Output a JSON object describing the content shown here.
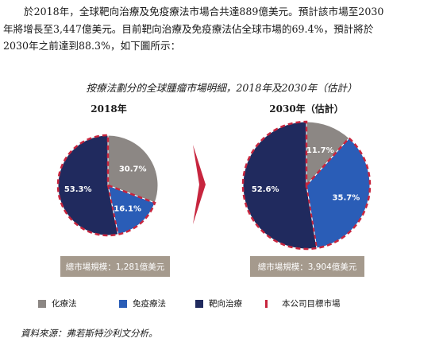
{
  "intro": {
    "line1": "於2018年，全球靶向治療及免疫療法市場合共達889億美元。預計該市場至2030",
    "line2": "年將增長至3,447億美元。目前靶向治療及免疫療法佔全球市場的69.4%，預計將於",
    "line3": "2030年之前達到88.3%，如下圖所示："
  },
  "chart_data": {
    "type": "pie",
    "title": "按療法劃分的全球腫瘤市場明細，2018年及2030年（估計）",
    "charts": [
      {
        "title": "2018年",
        "total_label": "總市場規模：1,281億美元",
        "slices": [
          {
            "category": "化療法",
            "value": 30.7,
            "label": "30.7%"
          },
          {
            "category": "免疫療法",
            "value": 16.1,
            "label": "16.1%"
          },
          {
            "category": "靶向治療",
            "value": 53.3,
            "label": "53.3%"
          }
        ]
      },
      {
        "title": "2030年（估計）",
        "total_label": "總市場規模：3,904億美元",
        "slices": [
          {
            "category": "化療法",
            "value": 11.7,
            "label": "11.7%"
          },
          {
            "category": "免疫療法",
            "value": 35.7,
            "label": "35.7%"
          },
          {
            "category": "靶向治療",
            "value": 52.6,
            "label": "52.6%"
          }
        ]
      }
    ],
    "legend": [
      {
        "label": "化療法",
        "color": "#8c8784"
      },
      {
        "label": "免疫療法",
        "color": "#2a5db7"
      },
      {
        "label": "靶向治療",
        "color": "#202a5e"
      },
      {
        "label": "本公司目標市場",
        "color": "#c7253e",
        "style": "dashed-outline"
      }
    ],
    "highlight_color": "#c7253e",
    "arrow_color": "#c7253e",
    "legend_position": "bottom"
  },
  "source": "資料來源：弗若斯特沙利文分析。"
}
